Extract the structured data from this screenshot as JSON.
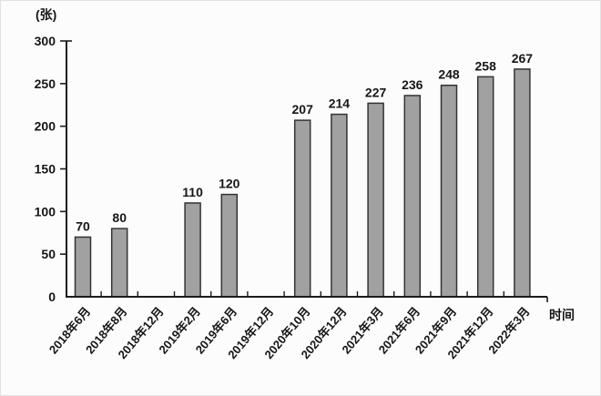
{
  "chart_data": {
    "type": "bar",
    "title": "",
    "y_unit_label": "(张)",
    "xlabel": "时间",
    "categories": [
      "2018年6月",
      "2018年8月",
      "2018年12月",
      "2019年2月",
      "2019年6月",
      "2019年12月",
      "2020年10月",
      "2020年12月",
      "2021年3月",
      "2021年6月",
      "2021年9月",
      "2021年12月",
      "2022年3月"
    ],
    "values": [
      70,
      80,
      null,
      110,
      120,
      null,
      207,
      214,
      227,
      236,
      248,
      258,
      267
    ],
    "ylim": [
      0,
      300
    ],
    "yticks": [
      0,
      50,
      100,
      150,
      200,
      250,
      300
    ],
    "grid": false,
    "legend": "none",
    "colors": {
      "bar_fill": "#a1a1a1",
      "bar_border": "#333333",
      "axis": "#1c1c1c",
      "text": "#161616",
      "background": "#fcfcfc"
    }
  }
}
